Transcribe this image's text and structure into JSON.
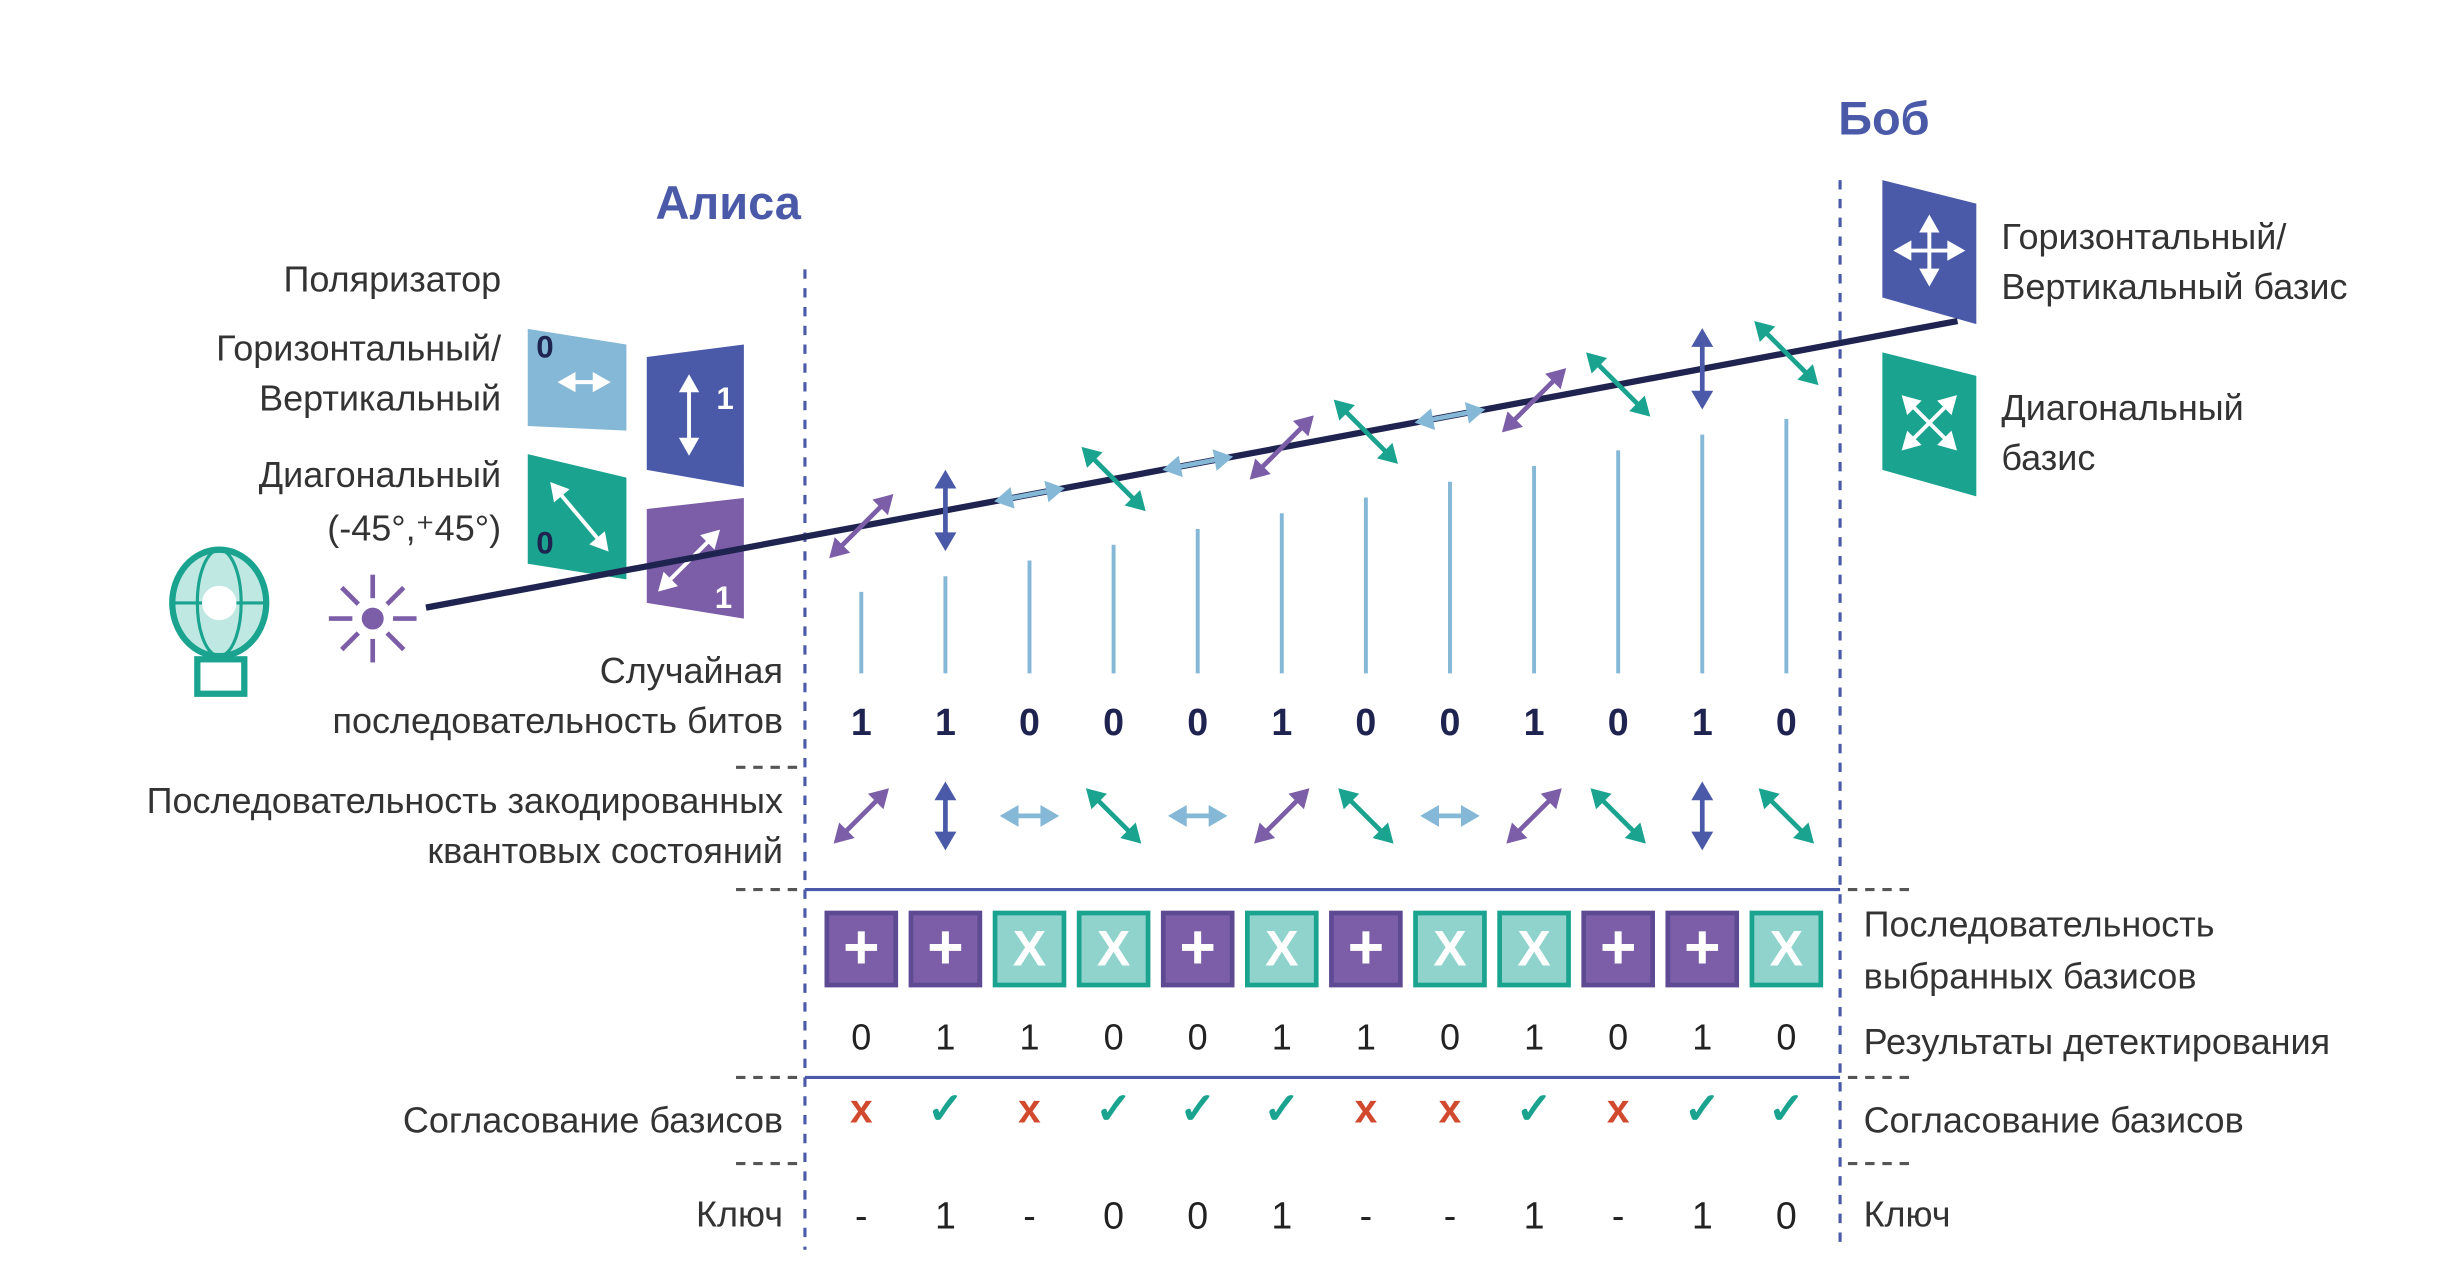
{
  "alice": {
    "label": "Алиса"
  },
  "bob": {
    "label": "Боб",
    "bases_legend": [
      {
        "lines": [
          "Горизонтальный/",
          "Вертикальный базис"
        ]
      },
      {
        "lines": [
          "Диагональный",
          "базис"
        ]
      }
    ]
  },
  "polarizer": {
    "title": "Поляризатор",
    "hv": {
      "lines": [
        "Горизонтальный/",
        "Вертикальный"
      ],
      "states": [
        "0",
        "1"
      ]
    },
    "diagonal": {
      "lines": [
        "Диагональный",
        "(-45°,⁺45°)"
      ],
      "states": [
        "0",
        "1"
      ]
    }
  },
  "rows": {
    "bits": {
      "label": [
        "Случайная",
        "последовательность битов"
      ],
      "values": [
        "1",
        "1",
        "0",
        "0",
        "0",
        "1",
        "0",
        "0",
        "1",
        "0",
        "1",
        "0"
      ]
    },
    "encoded": {
      "label": [
        "Последовательность закодированных",
        "квантовых состояний"
      ]
    },
    "bob_bases": {
      "label": [
        "Последовательность",
        "выбранных базисов"
      ],
      "values": [
        "+",
        "+",
        "X",
        "X",
        "+",
        "X",
        "+",
        "X",
        "X",
        "+",
        "+",
        "X"
      ]
    },
    "detection": {
      "label": [
        "Результаты детектирования"
      ],
      "values": [
        "0",
        "1",
        "1",
        "0",
        "0",
        "1",
        "1",
        "0",
        "1",
        "0",
        "1",
        "0"
      ]
    },
    "agreement": {
      "label_left": [
        "Согласование базисов"
      ],
      "label_right": [
        "Согласование базисов"
      ],
      "values": [
        "x",
        "✓",
        "x",
        "✓",
        "✓",
        "✓",
        "x",
        "x",
        "✓",
        "x",
        "✓",
        "✓"
      ]
    },
    "key": {
      "label_left": [
        "Ключ"
      ],
      "label_right": [
        "Ключ"
      ],
      "values": [
        "-",
        "1",
        "-",
        "0",
        "0",
        "1",
        "-",
        "-",
        "1",
        "-",
        "1",
        "0"
      ]
    }
  }
}
